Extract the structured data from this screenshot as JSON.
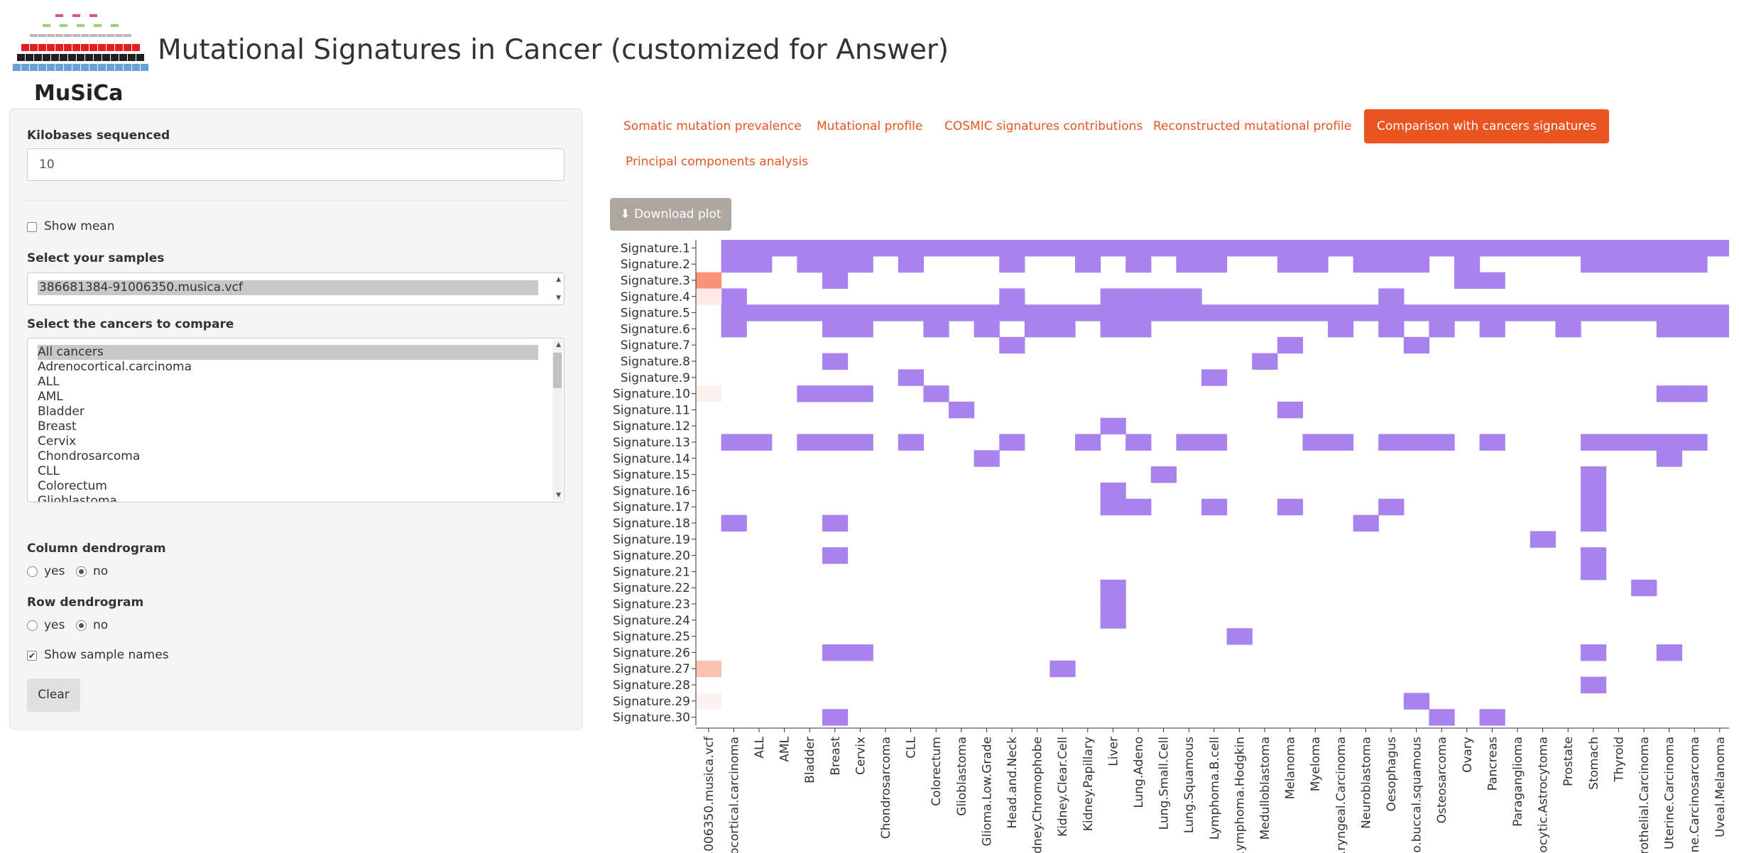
{
  "app": {
    "logo_text": "MuSiCa",
    "title": "Mutational Signatures in Cancer (customized for Answer)"
  },
  "sidebar": {
    "kilobases_label": "Kilobases sequenced",
    "kilobases_value": "10",
    "show_mean_label": "Show mean",
    "show_mean_checked": false,
    "samples_label": "Select your samples",
    "samples_selected": "386681384-91006350.musica.vcf",
    "cancers_label": "Select the cancers to compare",
    "cancers_options": [
      "All cancers",
      "Adrenocortical.carcinoma",
      "ALL",
      "AML",
      "Bladder",
      "Breast",
      "Cervix",
      "Chondrosarcoma",
      "CLL",
      "Colorectum",
      "Glioblastoma"
    ],
    "cancers_selected": "All cancers",
    "column_dendrogram_label": "Column dendrogram",
    "row_dendrogram_label": "Row dendrogram",
    "yes_label": "yes",
    "no_label": "no",
    "column_dendrogram_value": "no",
    "row_dendrogram_value": "no",
    "show_sample_names_label": "Show sample names",
    "show_sample_names_checked": true,
    "clear_label": "Clear"
  },
  "tabs": [
    {
      "label": "Somatic mutation prevalence",
      "active": false
    },
    {
      "label": "Mutational profile",
      "active": false
    },
    {
      "label": "COSMIC signatures contributions",
      "active": false
    },
    {
      "label": "Reconstructed mutational profile",
      "active": false
    },
    {
      "label": "Comparison with cancers signatures",
      "active": true
    },
    {
      "label": "Principal components analysis",
      "active": false
    }
  ],
  "download_label": "Download plot",
  "colors": {
    "accent": "#e95420",
    "purple": "#a883f0",
    "sample_strong": "#f89377",
    "sample_mid": "#fbc2ae",
    "sample_light": "#fde9e4",
    "sample_faint": "#fdf1ee"
  },
  "chart_data": {
    "type": "heatmap",
    "rows": [
      "Signature.1",
      "Signature.2",
      "Signature.3",
      "Signature.4",
      "Signature.5",
      "Signature.6",
      "Signature.7",
      "Signature.8",
      "Signature.9",
      "Signature.10",
      "Signature.11",
      "Signature.12",
      "Signature.13",
      "Signature.14",
      "Signature.15",
      "Signature.16",
      "Signature.17",
      "Signature.18",
      "Signature.19",
      "Signature.20",
      "Signature.21",
      "Signature.22",
      "Signature.23",
      "Signature.24",
      "Signature.25",
      "Signature.26",
      "Signature.27",
      "Signature.28",
      "Signature.29",
      "Signature.30"
    ],
    "columns": [
      "..006350.musica.vcf",
      "..ocortical.carcinoma",
      "ALL",
      "AML",
      "Bladder",
      "Breast",
      "Cervix",
      "Chondrosarcoma",
      "CLL",
      "Colorectum",
      "Glioblastoma",
      "Glioma.Low.Grade",
      "Head.and.Neck",
      "..dney.Chromophobe",
      "Kidney.Clear.Cell",
      "Kidney.Papillary",
      "Liver",
      "Lung.Adeno",
      "Lung.Small.Cell",
      "Lung.Squamous",
      "Lymphoma.B.cell",
      "..ymphoma.Hodgkin",
      "Medulloblastoma",
      "Melanoma",
      "Myeloma",
      "..ryngeal.Carcinoma",
      "Neuroblastoma",
      "Oesophagus",
      "..o.buccal.squamous",
      "Osteosarcoma",
      "Ovary",
      "Pancreas",
      "Paraganglioma",
      "..locytic.Astrocytoma",
      "Prostate",
      "Stomach",
      "Thyroid",
      "..rothelial.Carcinoma",
      "Uterine.Carcinoma",
      "..ine.Carcinosarcoma",
      "Uveal.Melanoma"
    ],
    "sample_values": {
      "Signature.3": 0.6,
      "Signature.4": 0.15,
      "Signature.10": 0.08,
      "Signature.27": 0.4,
      "Signature.29": 0.08
    },
    "cancer_presence": {
      "Signature.1": [
        1,
        2,
        3,
        4,
        5,
        6,
        7,
        8,
        9,
        10,
        11,
        12,
        13,
        14,
        15,
        16,
        17,
        18,
        19,
        20,
        21,
        22,
        23,
        24,
        25,
        26,
        27,
        28,
        29,
        30,
        31,
        32,
        33,
        34,
        35,
        36,
        37,
        38,
        39,
        40
      ],
      "Signature.2": [
        1,
        2,
        4,
        5,
        6,
        8,
        12,
        15,
        17,
        19,
        20,
        23,
        24,
        26,
        27,
        28,
        30,
        35,
        36,
        37,
        38,
        39
      ],
      "Signature.3": [
        5,
        30,
        31
      ],
      "Signature.4": [
        1,
        12,
        16,
        17,
        18,
        19,
        27
      ],
      "Signature.5": [
        1,
        2,
        3,
        4,
        5,
        6,
        7,
        8,
        9,
        10,
        11,
        12,
        13,
        14,
        15,
        16,
        17,
        18,
        19,
        20,
        21,
        22,
        23,
        24,
        25,
        26,
        27,
        28,
        29,
        30,
        31,
        32,
        33,
        34,
        35,
        36,
        37,
        38,
        39,
        40
      ],
      "Signature.6": [
        1,
        5,
        6,
        9,
        11,
        13,
        14,
        16,
        17,
        25,
        27,
        29,
        31,
        34,
        38,
        39,
        40
      ],
      "Signature.7": [
        12,
        23,
        28
      ],
      "Signature.8": [
        5,
        22
      ],
      "Signature.9": [
        8,
        20
      ],
      "Signature.10": [
        4,
        5,
        6,
        9,
        38,
        39
      ],
      "Signature.11": [
        10,
        23
      ],
      "Signature.12": [
        16
      ],
      "Signature.13": [
        1,
        2,
        4,
        5,
        6,
        8,
        12,
        15,
        17,
        19,
        20,
        24,
        25,
        27,
        28,
        29,
        31,
        35,
        36,
        37,
        38,
        39
      ],
      "Signature.14": [
        11,
        38
      ],
      "Signature.15": [
        18,
        35
      ],
      "Signature.16": [
        16,
        35
      ],
      "Signature.17": [
        16,
        17,
        20,
        23,
        27,
        35
      ],
      "Signature.18": [
        1,
        5,
        26,
        35
      ],
      "Signature.19": [
        33
      ],
      "Signature.20": [
        5,
        35
      ],
      "Signature.21": [
        35
      ],
      "Signature.22": [
        16,
        37
      ],
      "Signature.23": [
        16
      ],
      "Signature.24": [
        16
      ],
      "Signature.25": [
        21
      ],
      "Signature.26": [
        5,
        6,
        35,
        38
      ],
      "Signature.27": [
        14
      ],
      "Signature.28": [
        35
      ],
      "Signature.29": [
        28
      ],
      "Signature.30": [
        5,
        29,
        31
      ]
    }
  }
}
